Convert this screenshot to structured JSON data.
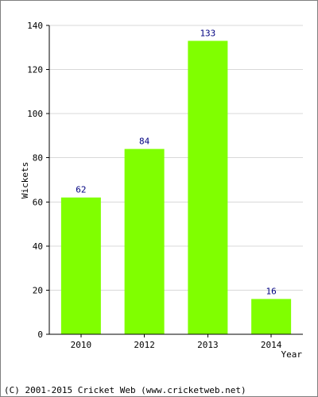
{
  "chart_data": {
    "type": "bar",
    "categories": [
      "2010",
      "2012",
      "2013",
      "2014"
    ],
    "values": [
      62,
      84,
      133,
      16
    ],
    "xlabel": "Year",
    "ylabel": "Wickets",
    "ylim": [
      0,
      140
    ],
    "yticks": [
      0,
      20,
      40,
      60,
      80,
      100,
      120,
      140
    ],
    "grid": "horizontal",
    "data_labels": true,
    "bar_color": "#80ff00",
    "label_color": "#000080"
  },
  "footer": {
    "copyright": "(C) 2001-2015 Cricket Web (www.cricketweb.net)"
  }
}
